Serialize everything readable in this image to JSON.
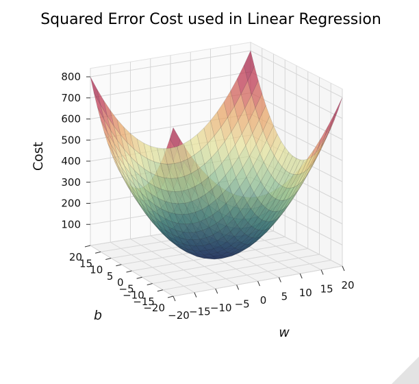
{
  "chart_data": {
    "type": "surface3d",
    "title": "Squared Error Cost used in Linear Regression",
    "xlabel": "w",
    "ylabel": "b",
    "zlabel": "Cost",
    "xlim": [
      -20,
      20
    ],
    "ylim": [
      -20,
      20
    ],
    "zlim": [
      0,
      800
    ],
    "x_ticks": [
      "−20",
      "−15",
      "−10",
      "−5",
      "0",
      "5",
      "10",
      "15",
      "20"
    ],
    "y_ticks": [
      "−20",
      "−15",
      "−10",
      "−5",
      "0",
      "5",
      "10",
      "15",
      "20"
    ],
    "z_ticks": [
      "100",
      "200",
      "300",
      "400",
      "500",
      "600",
      "700",
      "800"
    ],
    "surface": {
      "function": "cost = w^2 + b^2",
      "min_cost": 0,
      "corner_costs": {
        "w-20_b-20": 800,
        "w20_b-20": 800,
        "w-20_b20": 800,
        "w20_b20": 800
      },
      "edge_mid_costs": {
        "w0_b-20": 400,
        "w0_b20": 400,
        "w-20_b0": 400,
        "w20_b0": 400
      },
      "colormap": [
        "#1d2d5c",
        "#2f6b70",
        "#8fbf8e",
        "#e6e29a",
        "#e8a060",
        "#c0364f",
        "#8e0f3e"
      ]
    },
    "grid": true
  }
}
